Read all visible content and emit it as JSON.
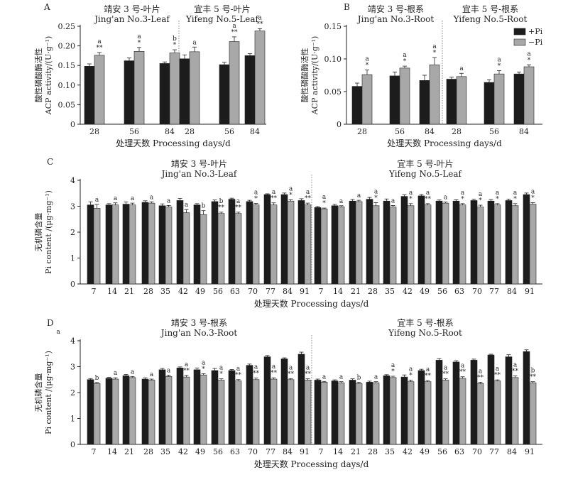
{
  "figure": {
    "xlabel": "处理天数 Processing days/d",
    "legend": [
      "+Pi",
      "−Pi"
    ],
    "colors": {
      "plus_pi": "#1c1c1c",
      "minus_pi": "#a8a8a8"
    }
  },
  "chart_data": [
    {
      "panel": "A",
      "type": "bar",
      "ylabel_cn": "酸性磷酸酶活性",
      "ylabel_en": "ACP activity/(U·g⁻¹)",
      "ylim": [
        0,
        0.25
      ],
      "yticks": [
        "0",
        "0.05",
        "0.10",
        "0.15",
        "0.20",
        "0.25"
      ],
      "groups": [
        {
          "title_cn": "靖安 3 号-叶片",
          "title_en": "Jing'an No.3-Leaf",
          "categories": [
            "28",
            "56",
            "84"
          ],
          "series": [
            {
              "name": "+Pi",
              "values": [
                0.148,
                0.162,
                0.155
              ],
              "errors": [
                0.006,
                0.007,
                0.004
              ],
              "labels": [
                "",
                "",
                ""
              ]
            },
            {
              "name": "−Pi",
              "values": [
                0.176,
                0.186,
                0.182
              ],
              "errors": [
                0.007,
                0.01,
                0.008
              ],
              "labels": [
                "a\n**",
                "a\n*",
                "b\n*"
              ]
            }
          ]
        },
        {
          "title_cn": "宜丰 5 号-叶片",
          "title_en": "Yifeng No.5-Leaf",
          "categories": [
            "28",
            "56",
            "84"
          ],
          "series": [
            {
              "name": "+Pi",
              "values": [
                0.167,
                0.152,
                0.175
              ],
              "errors": [
                0.01,
                0.006,
                0.005
              ],
              "labels": [
                "",
                "",
                ""
              ]
            },
            {
              "name": "−Pi",
              "values": [
                0.185,
                0.211,
                0.238
              ],
              "errors": [
                0.012,
                0.012,
                0.006
              ],
              "labels": [
                "a",
                "a\n**",
                "a\n**"
              ]
            }
          ]
        }
      ]
    },
    {
      "panel": "B",
      "type": "bar",
      "ylabel_cn": "酸性磷酸酶活性",
      "ylabel_en": "ACP activity/(U·g⁻¹)",
      "ylim": [
        0,
        0.15
      ],
      "yticks": [
        "0",
        "0.05",
        "0.10",
        "0.15"
      ],
      "groups": [
        {
          "title_cn": "靖安 3 号-根系",
          "title_en": "Jing'an No.3-Root",
          "categories": [
            "28",
            "56",
            "84"
          ],
          "series": [
            {
              "name": "+Pi",
              "values": [
                0.058,
                0.074,
                0.067
              ],
              "errors": [
                0.005,
                0.006,
                0.008
              ],
              "labels": [
                "",
                "",
                ""
              ]
            },
            {
              "name": "−Pi",
              "values": [
                0.076,
                0.086,
                0.091
              ],
              "errors": [
                0.007,
                0.003,
                0.011
              ],
              "labels": [
                "a\n*",
                "a\n*",
                "a\n*"
              ]
            }
          ]
        },
        {
          "title_cn": "宜丰 5 号-根系",
          "title_en": "Yifeng No.5-Root",
          "categories": [
            "28",
            "56",
            "84"
          ],
          "series": [
            {
              "name": "+Pi",
              "values": [
                0.069,
                0.064,
                0.077
              ],
              "errors": [
                0.003,
                0.004,
                0.003
              ],
              "labels": [
                "",
                "",
                ""
              ]
            },
            {
              "name": "−Pi",
              "values": [
                0.073,
                0.077,
                0.088
              ],
              "errors": [
                0.005,
                0.005,
                0.003
              ],
              "labels": [
                "a",
                "a\n*",
                "a\n*"
              ]
            }
          ]
        }
      ]
    },
    {
      "panel": "C",
      "type": "bar",
      "ylabel_cn": "无机磷含量",
      "ylabel_en": "Pi content /(μg·mg⁻¹)",
      "ylim": [
        0,
        4
      ],
      "yticks": [
        "0",
        "1",
        "2",
        "3",
        "4"
      ],
      "groups": [
        {
          "title_cn": "靖安 3 号-叶片",
          "title_en": "Jing'an No.3-Leaf",
          "categories": [
            "7",
            "14",
            "21",
            "28",
            "35",
            "42",
            "49",
            "56",
            "63",
            "70",
            "77",
            "84",
            "91"
          ],
          "series": [
            {
              "name": "+Pi",
              "values": [
                3.05,
                3.05,
                3.08,
                3.15,
                3.02,
                3.22,
                3.05,
                3.18,
                3.27,
                3.18,
                3.45,
                3.45,
                3.22
              ],
              "errors": [
                0.12,
                0.05,
                0.08,
                0.06,
                0.07,
                0.08,
                0.05,
                0.06,
                0.04,
                0.05,
                0.03,
                0.06,
                0.07
              ],
              "labels": [
                "",
                "",
                "",
                "",
                "",
                "",
                "",
                "",
                "",
                "",
                "",
                "",
                ""
              ]
            },
            {
              "name": "−Pi",
              "values": [
                2.92,
                3.05,
                3.05,
                3.12,
                2.97,
                2.75,
                2.68,
                2.72,
                2.72,
                3.05,
                3.05,
                3.2,
                3.05
              ],
              "errors": [
                0.15,
                0.08,
                0.07,
                0.05,
                0.06,
                0.12,
                0.15,
                0.05,
                0.05,
                0.06,
                0.08,
                0.05,
                0.07
              ],
              "labels": [
                "a",
                "a",
                "a",
                "a",
                "a",
                "a",
                "b",
                "b\n**",
                "a\n**",
                "a\n*",
                "a\n**",
                "a\n*",
                "a\n**"
              ]
            }
          ]
        },
        {
          "title_cn": "宜丰 5 号-叶片",
          "title_en": "Yifeng No.5-Leaf",
          "categories": [
            "7",
            "14",
            "21",
            "28",
            "35",
            "42",
            "49",
            "56",
            "63",
            "70",
            "77",
            "84",
            "91"
          ],
          "series": [
            {
              "name": "+Pi",
              "values": [
                2.95,
                3.02,
                3.2,
                3.27,
                3.2,
                3.38,
                3.4,
                3.2,
                3.2,
                3.22,
                3.2,
                3.22,
                3.45
              ],
              "errors": [
                0.04,
                0.05,
                0.06,
                0.07,
                0.08,
                0.06,
                0.05,
                0.04,
                0.05,
                0.05,
                0.06,
                0.05,
                0.06
              ],
              "labels": [
                "",
                "",
                "",
                "",
                "",
                "",
                "",
                "",
                "",
                "",
                "",
                "",
                ""
              ]
            },
            {
              "name": "−Pi",
              "values": [
                2.9,
                2.98,
                3.18,
                3.02,
                2.97,
                3.02,
                3.05,
                3.12,
                3.05,
                2.97,
                3.05,
                3.02,
                3.08
              ],
              "errors": [
                0.03,
                0.04,
                0.05,
                0.12,
                0.06,
                0.08,
                0.05,
                0.04,
                0.05,
                0.07,
                0.05,
                0.08,
                0.06
              ],
              "labels": [
                "a\n*",
                "a",
                "a",
                "a\n*",
                "a",
                "a\n*",
                "a\n**",
                "a",
                "a\n*",
                "a\n*",
                "a\n*",
                "a\n*",
                "a\n*"
              ]
            }
          ]
        }
      ]
    },
    {
      "panel": "D",
      "type": "bar",
      "ylabel_cn": "无机磷含量",
      "ylabel_en": "Pi content /(μg·mg⁻¹)",
      "ylim": [
        0,
        4
      ],
      "yticks": [
        "0",
        "1",
        "2",
        "3",
        "4"
      ],
      "stray_label": "a",
      "groups": [
        {
          "title_cn": "靖安 3 号-根系",
          "title_en": "Jing'an No.3-Root",
          "categories": [
            "7",
            "14",
            "21",
            "28",
            "35",
            "42",
            "49",
            "56",
            "63",
            "70",
            "77",
            "84",
            "91"
          ],
          "series": [
            {
              "name": "+Pi",
              "values": [
                2.5,
                2.55,
                2.65,
                2.52,
                2.88,
                2.95,
                2.88,
                2.85,
                2.85,
                3.05,
                3.38,
                3.3,
                3.48
              ],
              "errors": [
                0.04,
                0.04,
                0.05,
                0.05,
                0.05,
                0.04,
                0.07,
                0.08,
                0.04,
                0.05,
                0.05,
                0.04,
                0.08
              ],
              "labels": [
                "",
                "",
                "",
                "",
                "",
                "",
                "",
                "",
                "",
                "",
                "",
                "",
                ""
              ]
            },
            {
              "name": "−Pi",
              "values": [
                2.35,
                2.52,
                2.58,
                2.48,
                2.62,
                2.6,
                2.68,
                2.48,
                2.45,
                2.5,
                2.52,
                2.5,
                2.48
              ],
              "errors": [
                0.04,
                0.05,
                0.04,
                0.04,
                0.05,
                0.06,
                0.05,
                0.05,
                0.05,
                0.06,
                0.05,
                0.04,
                0.05
              ],
              "labels": [
                "b",
                "a",
                "a",
                "a",
                "a",
                "a\n**",
                "a\n*",
                "a\n*",
                "a\n**",
                "a\n**",
                "a\n**",
                "a\n**",
                "a\n**"
              ]
            }
          ]
        },
        {
          "title_cn": "宜丰 5 号-根系",
          "title_en": "Yifeng No.5-Root",
          "categories": [
            "7",
            "14",
            "21",
            "28",
            "35",
            "42",
            "49",
            "56",
            "63",
            "70",
            "77",
            "84",
            "91"
          ],
          "series": [
            {
              "name": "+Pi",
              "values": [
                2.48,
                2.45,
                2.48,
                2.4,
                2.65,
                2.6,
                2.85,
                3.25,
                3.18,
                3.25,
                3.45,
                3.38,
                3.58
              ],
              "errors": [
                0.04,
                0.04,
                0.05,
                0.04,
                0.04,
                0.08,
                0.05,
                0.06,
                0.05,
                0.04,
                0.03,
                0.08,
                0.07
              ],
              "labels": [
                "",
                "",
                "",
                "",
                "",
                "",
                "",
                "",
                "",
                "",
                "",
                "",
                ""
              ]
            },
            {
              "name": "−Pi",
              "values": [
                2.4,
                2.38,
                2.35,
                2.38,
                2.58,
                2.42,
                2.42,
                2.48,
                2.55,
                2.35,
                2.45,
                2.58,
                2.38
              ],
              "errors": [
                0.03,
                0.04,
                0.05,
                0.04,
                0.05,
                0.06,
                0.04,
                0.05,
                0.06,
                0.05,
                0.04,
                0.06,
                0.04
              ],
              "labels": [
                "a",
                "a",
                "b",
                "a",
                "a\n*",
                "a\n*",
                "a\n**",
                "a\n**",
                "a\n**",
                "a\n**",
                "a\n**",
                "a\n**",
                "b\n**"
              ]
            }
          ]
        }
      ]
    }
  ]
}
